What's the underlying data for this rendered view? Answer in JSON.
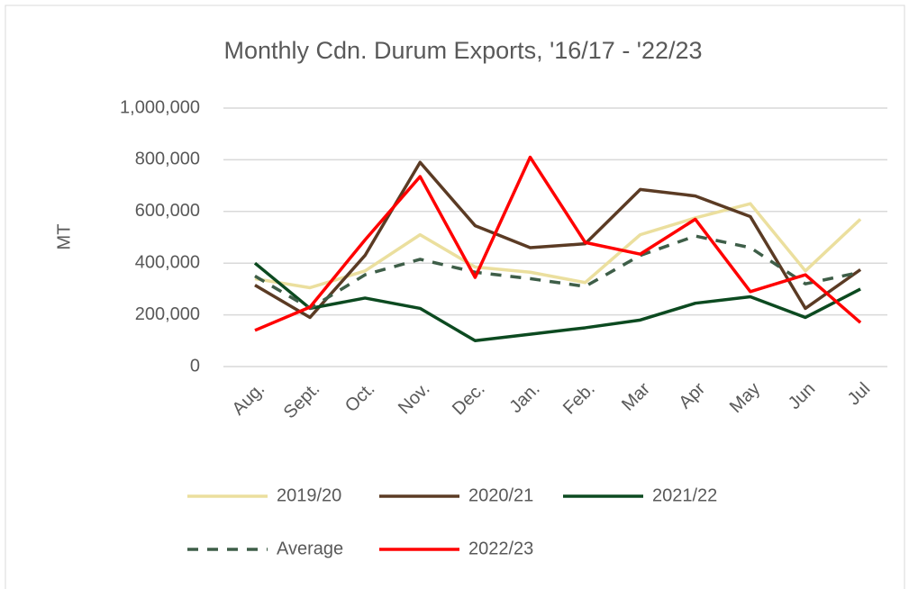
{
  "chart_data": {
    "type": "line",
    "title": "Monthly Cdn. Durum Exports, '16/17 - '22/23",
    "ylabel": "MT",
    "categories": [
      "Aug.",
      "Sept.",
      "Oct.",
      "Nov.",
      "Dec.",
      "Jan.",
      "Feb.",
      "Mar",
      "Apr",
      "May",
      "Jun",
      "Jul"
    ],
    "series": [
      {
        "name": "2019/20",
        "color": "#ebdf9e",
        "style": "solid",
        "values": [
          340000,
          305000,
          370000,
          510000,
          385000,
          365000,
          325000,
          510000,
          575000,
          630000,
          370000,
          570000
        ]
      },
      {
        "name": "2020/21",
        "color": "#5b3b24",
        "style": "solid",
        "values": [
          315000,
          190000,
          430000,
          790000,
          545000,
          460000,
          475000,
          685000,
          660000,
          580000,
          225000,
          375000
        ]
      },
      {
        "name": "2021/22",
        "color": "#0c4a20",
        "style": "solid",
        "values": [
          400000,
          225000,
          265000,
          225000,
          100000,
          125000,
          150000,
          180000,
          245000,
          270000,
          190000,
          300000
        ]
      },
      {
        "name": "Average",
        "color": "#3e5e48",
        "style": "dashed",
        "values": [
          350000,
          225000,
          355000,
          415000,
          365000,
          340000,
          310000,
          430000,
          505000,
          460000,
          320000,
          365000
        ]
      },
      {
        "name": "2022/23",
        "color": "#ff0000",
        "style": "solid",
        "values": [
          140000,
          230000,
          490000,
          735000,
          345000,
          810000,
          480000,
          435000,
          570000,
          290000,
          355000,
          170000
        ]
      }
    ],
    "ylim": [
      0,
      1000000
    ],
    "yticks": [
      0,
      {
        "value": 200000,
        "label": "200,000"
      },
      {
        "value": 400000,
        "label": "400,000"
      },
      {
        "value": 600000,
        "label": "600,000"
      },
      {
        "value": 800000,
        "label": "800,000"
      },
      {
        "value": 1000000,
        "label": "1,000,000"
      }
    ],
    "grid": true,
    "legend": "bottom"
  }
}
